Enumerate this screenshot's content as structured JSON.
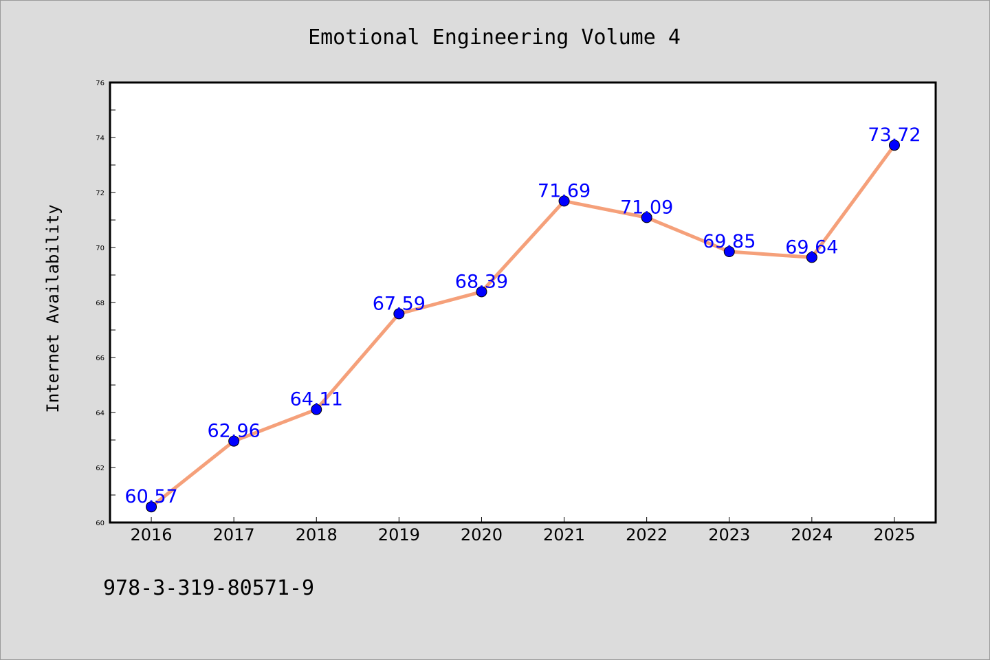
{
  "chart_data": {
    "type": "line",
    "title": "Emotional Engineering Volume 4",
    "xlabel": "",
    "ylabel": "Internet Availability",
    "categories": [
      "2016",
      "2017",
      "2018",
      "2019",
      "2020",
      "2021",
      "2022",
      "2023",
      "2024",
      "2025"
    ],
    "series": [
      {
        "values": [
          60.57,
          62.96,
          64.11,
          67.59,
          68.39,
          71.69,
          71.09,
          69.85,
          69.64,
          73.72
        ]
      }
    ],
    "ylim": [
      60,
      76
    ],
    "yticks": [
      60,
      62,
      64,
      66,
      68,
      70,
      72,
      74,
      76
    ],
    "yticks_minor": [
      61,
      63,
      65,
      67,
      69,
      71,
      73,
      75
    ],
    "grid": false,
    "legend": "none",
    "data_labels": [
      "60.57",
      "62.96",
      "64.11",
      "67.59",
      "68.39",
      "71.69",
      "71.09",
      "69.85",
      "69.64",
      "73.72"
    ],
    "annotation": "978-3-319-80571-9"
  },
  "colors": {
    "background": "#dcdcdc",
    "plot_area": "#ffffff",
    "line": "#f5a07a",
    "marker": "#0000ff",
    "data_label": "#0000ff",
    "text": "#000000"
  }
}
